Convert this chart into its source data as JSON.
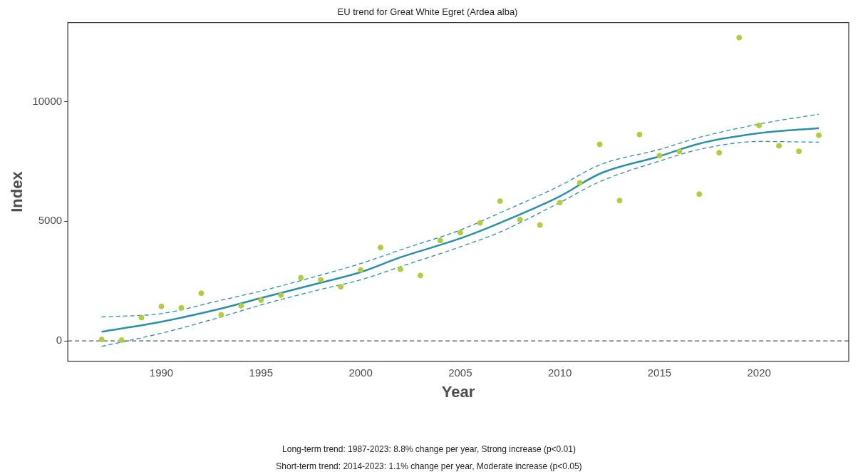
{
  "chart_data": {
    "type": "scatter",
    "title": "EU trend for Great White Egret (Ardea alba)",
    "xlabel": "Year",
    "ylabel": "Index",
    "xlim": [
      1985.3,
      2024.5
    ],
    "ylim": [
      -850,
      13300
    ],
    "xticks": [
      1990,
      1995,
      2000,
      2005,
      2010,
      2015,
      2020
    ],
    "yticks": [
      0,
      5000,
      10000
    ],
    "grid": false,
    "legend": false,
    "x": [
      1987,
      1988,
      1989,
      1990,
      1991,
      1992,
      1993,
      1994,
      1995,
      1996,
      1997,
      1998,
      1999,
      2000,
      2001,
      2002,
      2003,
      2004,
      2005,
      2006,
      2007,
      2008,
      2009,
      2010,
      2011,
      2012,
      2013,
      2014,
      2015,
      2016,
      2017,
      2018,
      2019,
      2020,
      2021,
      2022,
      2023
    ],
    "series": [
      {
        "color": "#b2cc3e",
        "marker": "circle",
        "values": [
          60,
          30,
          970,
          1440,
          1380,
          1990,
          1090,
          1470,
          1700,
          1910,
          2640,
          2550,
          2260,
          2960,
          3900,
          2990,
          2730,
          4190,
          4520,
          4930,
          5840,
          5070,
          4840,
          5780,
          6600,
          8210,
          5860,
          8620,
          7740,
          7920,
          6130,
          7860,
          12670,
          9000,
          8150,
          7920,
          8590
        ]
      },
      {
        "type": "line",
        "color": "#2a8fab",
        "line_style": "dashed",
        "marker": "none",
        "x": [
          1987,
          1990,
          1993,
          1995,
          1998,
          2000,
          2002,
          2005,
          2007,
          2010,
          2012,
          2015,
          2017,
          2020,
          2023
        ],
        "values": [
          -230,
          320,
          1000,
          1500,
          2150,
          2550,
          3100,
          3930,
          4550,
          5780,
          6650,
          7510,
          8000,
          8330,
          8300
        ]
      },
      {
        "type": "line",
        "color": "#2a8fab",
        "line_style": "dashed",
        "marker": "none",
        "x": [
          1987,
          1990,
          1993,
          1995,
          1998,
          2000,
          2002,
          2005,
          2007,
          2010,
          2012,
          2015,
          2017,
          2020,
          2023
        ],
        "values": [
          1000,
          1140,
          1700,
          2080,
          2750,
          3230,
          3800,
          4630,
          5350,
          6480,
          7350,
          8000,
          8500,
          9060,
          9470
        ]
      },
      {
        "type": "line",
        "color": "#2a8fab",
        "line_style": "solid",
        "marker": "none",
        "x": [
          1987,
          1990,
          1993,
          1995,
          1998,
          2000,
          2002,
          2005,
          2007,
          2010,
          2012,
          2015,
          2017,
          2020,
          2023
        ],
        "values": [
          380,
          800,
          1350,
          1790,
          2430,
          2870,
          3490,
          4280,
          4930,
          6040,
          6980,
          7710,
          8240,
          8680,
          8890
        ]
      }
    ],
    "ref_lines": [
      {
        "axis": "y",
        "value": 0,
        "color": "#555555",
        "line_style": "dashed"
      }
    ],
    "annotations": [
      "Long-term trend: 1987-2023: 8.8% change per year, Strong increase (p<0.01)",
      "Short-term trend: 2014-2023: 1.1% change per year, Moderate increase (p<0.05)"
    ]
  }
}
